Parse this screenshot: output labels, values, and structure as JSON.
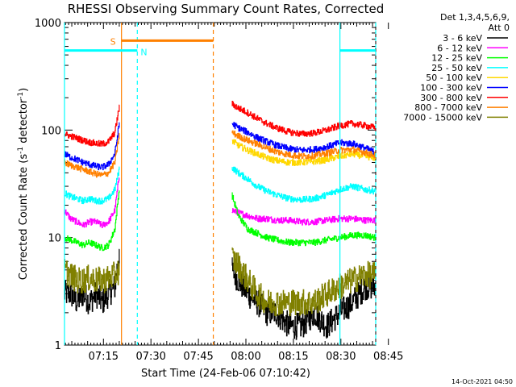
{
  "chart_data": {
    "type": "line",
    "title": "RHESSI Observing Summary Count Rates, Corrected",
    "xlabel": "Start Time (24-Feb-06 07:10:42)",
    "ylabel": "Corrected Count Rate (s⁻¹ detector⁻¹)",
    "ylabel_parts": {
      "main": "Corrected Count Rate (s",
      "sup1": "-1",
      "mid": " detector",
      "sup2": "-1",
      "end": ")"
    },
    "xlim_minutes": [
      7.0,
      105.3
    ],
    "ylim": [
      1,
      1000
    ],
    "yscale": "log",
    "x_ticks": [
      {
        "minute": 19.3,
        "label": "07:15"
      },
      {
        "minute": 34.3,
        "label": "07:30"
      },
      {
        "minute": 49.3,
        "label": "07:45"
      },
      {
        "minute": 64.3,
        "label": "08:00"
      },
      {
        "minute": 79.3,
        "label": "08:15"
      },
      {
        "minute": 94.3,
        "label": "08:30"
      },
      {
        "minute": 109.3,
        "label": "08:45"
      }
    ],
    "y_ticks": [
      {
        "value": 1,
        "label": "1"
      },
      {
        "value": 10,
        "label": "10"
      },
      {
        "value": 100,
        "label": "100"
      },
      {
        "value": 1000,
        "label": "1000"
      }
    ],
    "legend": {
      "placement": "right",
      "header": [
        "Det 1,3,4,5,6,9,",
        "Att 0"
      ]
    },
    "series": [
      {
        "name": "3 - 6 keV",
        "color": "#000000",
        "segments": [
          {
            "x": [
              7.0,
              9.0,
              11.0,
              13.0,
              15.0,
              17.0,
              19.0,
              21.0,
              23.0,
              24.5
            ],
            "y": [
              3.0,
              3.0,
              2.5,
              3.0,
              2.5,
              3.0,
              2.5,
              3.0,
              3.5,
              8.0
            ]
          },
          {
            "x": [
              60.0,
              62.0,
              65.0,
              68.0,
              71.0,
              74.0,
              78.0,
              82.0,
              86.0,
              90.0,
              94.0,
              98.0,
              102.0,
              105.3
            ],
            "y": [
              5.0,
              4.0,
              3.0,
              2.5,
              2.0,
              2.0,
              1.5,
              1.5,
              2.0,
              1.5,
              2.0,
              2.5,
              3.5,
              3.5
            ]
          }
        ]
      },
      {
        "name": "6 - 12 keV",
        "color": "#ff00ff",
        "segments": [
          {
            "x": [
              7.0,
              9.0,
              11.0,
              13.0,
              15.0,
              17.0,
              19.0,
              21.0,
              23.0,
              24.5
            ],
            "y": [
              18.0,
              15.0,
              14.0,
              13.0,
              14.0,
              14.0,
              13.0,
              14.0,
              18.0,
              40.0
            ]
          },
          {
            "x": [
              60.0,
              62.0,
              65.0,
              68.0,
              71.0,
              74.0,
              78.0,
              82.0,
              86.0,
              90.0,
              94.0,
              98.0,
              102.0,
              105.3
            ],
            "y": [
              18.0,
              17.0,
              16.0,
              15.0,
              15.0,
              14.5,
              14.5,
              14.0,
              14.0,
              14.5,
              15.0,
              15.0,
              14.5,
              14.5
            ]
          }
        ]
      },
      {
        "name": "12 - 25 keV",
        "color": "#00ff00",
        "segments": [
          {
            "x": [
              7.0,
              9.0,
              11.0,
              13.0,
              15.0,
              17.0,
              19.0,
              21.0,
              23.0,
              24.5
            ],
            "y": [
              10.0,
              9.5,
              9.0,
              8.5,
              9.0,
              8.5,
              8.0,
              8.5,
              12.0,
              30.0
            ]
          },
          {
            "x": [
              60.0,
              62.0,
              65.0,
              68.0,
              71.0,
              74.0,
              78.0,
              82.0,
              86.0,
              90.0,
              94.0,
              98.0,
              102.0,
              105.3
            ],
            "y": [
              25.0,
              16.0,
              12.0,
              11.0,
              10.0,
              9.5,
              9.0,
              9.0,
              9.0,
              9.5,
              10.0,
              10.5,
              10.5,
              10.0
            ]
          }
        ]
      },
      {
        "name": "25 - 50 keV",
        "color": "#00ffff",
        "segments": [
          {
            "x": [
              7.0,
              9.0,
              11.0,
              13.0,
              15.0,
              17.0,
              19.0,
              21.0,
              23.0,
              24.5
            ],
            "y": [
              26.0,
              24.0,
              23.0,
              22.0,
              23.0,
              22.0,
              22.0,
              23.0,
              28.0,
              45.0
            ]
          },
          {
            "x": [
              60.0,
              62.0,
              65.0,
              68.0,
              71.0,
              74.0,
              78.0,
              82.0,
              86.0,
              90.0,
              94.0,
              98.0,
              102.0,
              105.3
            ],
            "y": [
              45.0,
              40.0,
              35.0,
              30.0,
              27.0,
              25.0,
              23.0,
              22.5,
              23.0,
              25.0,
              28.0,
              30.0,
              28.0,
              27.0
            ]
          }
        ]
      },
      {
        "name": "50 - 100 keV",
        "color": "#ffd700",
        "segments": [
          {
            "x": [
              60.0,
              62.0,
              65.0,
              68.0,
              71.0,
              74.0,
              78.0,
              82.0,
              86.0,
              90.0,
              94.0,
              98.0,
              102.0,
              105.3
            ],
            "y": [
              80.0,
              72.0,
              65.0,
              60.0,
              55.0,
              52.0,
              50.0,
              50.0,
              51.0,
              53.0,
              57.0,
              60.0,
              57.0,
              55.0
            ]
          }
        ]
      },
      {
        "name": "100 - 300 keV",
        "color": "#0000ff",
        "segments": [
          {
            "x": [
              7.0,
              9.0,
              11.0,
              13.0,
              15.0,
              17.0,
              19.0,
              21.0,
              23.0,
              24.5
            ],
            "y": [
              60.0,
              56.0,
              53.0,
              50.0,
              48.0,
              46.0,
              45.0,
              48.0,
              60.0,
              120.0
            ]
          },
          {
            "x": [
              60.0,
              62.0,
              65.0,
              68.0,
              71.0,
              74.0,
              78.0,
              82.0,
              86.0,
              90.0,
              94.0,
              98.0,
              102.0,
              105.3
            ],
            "y": [
              115.0,
              105.0,
              95.0,
              85.0,
              78.0,
              72.0,
              67.0,
              65.0,
              66.0,
              70.0,
              76.0,
              75.0,
              68.0,
              62.0
            ]
          }
        ]
      },
      {
        "name": "300 - 800 keV",
        "color": "#ff0000",
        "segments": [
          {
            "x": [
              7.0,
              9.0,
              11.0,
              13.0,
              15.0,
              17.0,
              19.0,
              21.0,
              23.0,
              24.5
            ],
            "y": [
              92.0,
              88.0,
              84.0,
              80.0,
              77.0,
              75.0,
              74.0,
              78.0,
              95.0,
              170.0
            ]
          },
          {
            "x": [
              60.0,
              62.0,
              65.0,
              68.0,
              71.0,
              74.0,
              78.0,
              82.0,
              86.0,
              90.0,
              94.0,
              98.0,
              102.0,
              105.3
            ],
            "y": [
              175.0,
              160.0,
              145.0,
              128.0,
              115.0,
              105.0,
              96.0,
              92.0,
              94.0,
              100.0,
              110.0,
              115.0,
              110.0,
              105.0
            ]
          }
        ]
      },
      {
        "name": "800 - 7000 keV",
        "color": "#ff8000",
        "segments": [
          {
            "x": [
              7.0,
              9.0,
              11.0,
              13.0,
              15.0,
              17.0,
              19.0,
              21.0,
              23.0,
              24.5
            ],
            "y": [
              50.0,
              47.0,
              45.0,
              43.0,
              41.0,
              39.0,
              38.0,
              40.0,
              50.0,
              95.0
            ]
          },
          {
            "x": [
              60.0,
              62.0,
              65.0,
              68.0,
              71.0,
              74.0,
              78.0,
              82.0,
              86.0,
              90.0,
              94.0,
              98.0,
              102.0,
              105.3
            ],
            "y": [
              95.0,
              88.0,
              80.0,
              74.0,
              68.0,
              63.0,
              59.0,
              57.0,
              58.0,
              61.0,
              65.0,
              66.0,
              62.0,
              58.0
            ]
          }
        ]
      },
      {
        "name": "7000 - 15000 keV",
        "color": "#808000",
        "segments": [
          {
            "x": [
              7.0,
              9.0,
              11.0,
              13.0,
              15.0,
              17.0,
              19.0,
              21.0,
              23.0,
              24.5
            ],
            "y": [
              5.0,
              4.5,
              4.0,
              4.0,
              4.2,
              4.0,
              4.0,
              4.2,
              4.5,
              5.0
            ]
          },
          {
            "x": [
              60.0,
              62.0,
              65.0,
              68.0,
              71.0,
              74.0,
              78.0,
              82.0,
              86.0,
              90.0,
              94.0,
              98.0,
              102.0,
              105.3
            ],
            "y": [
              6.5,
              5.5,
              4.0,
              3.0,
              2.5,
              2.5,
              2.5,
              2.5,
              2.5,
              3.0,
              3.5,
              4.0,
              4.5,
              4.5
            ]
          }
        ]
      }
    ],
    "markers": [
      {
        "type": "saa_bar",
        "label": "S",
        "color": "#ff8000",
        "x_start": 25.0,
        "x_end": 54.0,
        "y_value": 680
      },
      {
        "type": "night_bar",
        "label": "N",
        "color": "#00ffff",
        "x_start": 7.0,
        "x_end": 30.0,
        "y_value": 550
      },
      {
        "type": "night_bar",
        "label": "",
        "color": "#00ffff",
        "x_start": 94.0,
        "x_end": 105.3,
        "y_value": 550
      }
    ],
    "vlines": [
      {
        "x": 25.0,
        "color": "#ff8000",
        "style": "solid"
      },
      {
        "x": 30.0,
        "color": "#00ffff",
        "style": "dashed"
      },
      {
        "x": 54.0,
        "color": "#ff8000",
        "style": "dashed"
      },
      {
        "x": 94.0,
        "color": "#00ffff",
        "style": "solid"
      },
      {
        "x": 105.3,
        "color": "#00ffff",
        "style": "dashed"
      },
      {
        "x": 7.0,
        "color": "#00ffff",
        "style": "solid"
      }
    ]
  },
  "footer": {
    "timestamp": "14-Oct-2021 04:50"
  }
}
